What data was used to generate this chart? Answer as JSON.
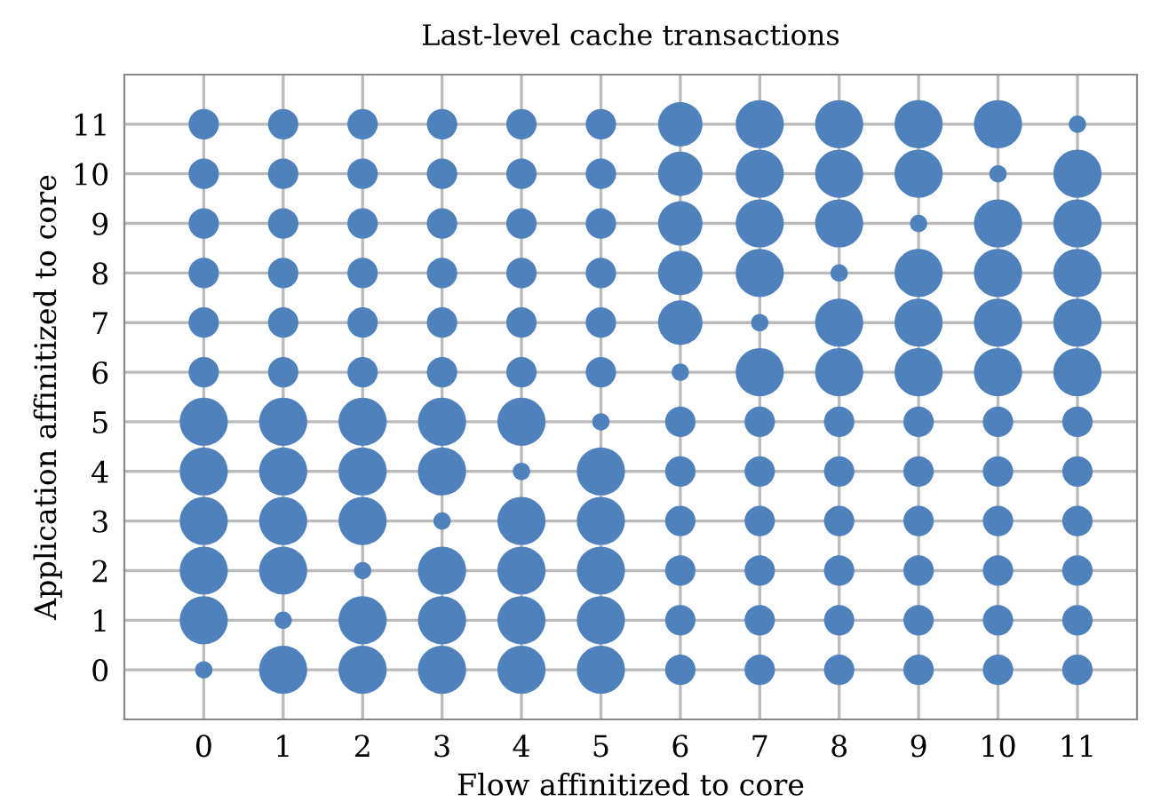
{
  "chart_data": {
    "type": "bubble",
    "title": "Last-level cache transactions",
    "xlabel": "Flow affinitized to core",
    "ylabel": "Application affinitized to core",
    "color": "#4f81bd",
    "xlim": [
      -1,
      11.75
    ],
    "ylim": [
      -1,
      12
    ],
    "xticks": [
      0,
      1,
      2,
      3,
      4,
      5,
      6,
      7,
      8,
      9,
      10,
      11
    ],
    "yticks": [
      0,
      1,
      2,
      3,
      4,
      5,
      6,
      7,
      8,
      9,
      10,
      11
    ],
    "grid": true,
    "x": [
      0,
      1,
      2,
      3,
      4,
      5,
      6,
      7,
      8,
      9,
      10,
      11,
      0,
      1,
      2,
      3,
      4,
      5,
      6,
      7,
      8,
      9,
      10,
      11,
      0,
      1,
      2,
      3,
      4,
      5,
      6,
      7,
      8,
      9,
      10,
      11,
      0,
      1,
      2,
      3,
      4,
      5,
      6,
      7,
      8,
      9,
      10,
      11,
      0,
      1,
      2,
      3,
      4,
      5,
      6,
      7,
      8,
      9,
      10,
      11,
      0,
      1,
      2,
      3,
      4,
      5,
      6,
      7,
      8,
      9,
      10,
      11,
      0,
      1,
      2,
      3,
      4,
      5,
      6,
      7,
      8,
      9,
      10,
      11,
      0,
      1,
      2,
      3,
      4,
      5,
      6,
      7,
      8,
      9,
      10,
      11,
      0,
      1,
      2,
      3,
      4,
      5,
      6,
      7,
      8,
      9,
      10,
      11,
      0,
      1,
      2,
      3,
      4,
      5,
      6,
      7,
      8,
      9,
      10,
      11,
      0,
      1,
      2,
      3,
      4,
      5,
      6,
      7,
      8,
      9,
      10,
      11,
      0,
      1,
      2,
      3,
      4,
      5,
      6,
      7,
      8,
      9,
      10,
      11
    ],
    "values": [
      0,
      0,
      0,
      0,
      0,
      0,
      0,
      0,
      0,
      0,
      0,
      0,
      1,
      1,
      1,
      1,
      1,
      1,
      1,
      1,
      1,
      1,
      1,
      1,
      2,
      2,
      2,
      2,
      2,
      2,
      2,
      2,
      2,
      2,
      2,
      2,
      3,
      3,
      3,
      3,
      3,
      3,
      3,
      3,
      3,
      3,
      3,
      3,
      4,
      4,
      4,
      4,
      4,
      4,
      4,
      4,
      4,
      4,
      4,
      4,
      5,
      5,
      5,
      5,
      5,
      5,
      5,
      5,
      5,
      5,
      5,
      5,
      6,
      6,
      6,
      6,
      6,
      6,
      6,
      6,
      6,
      6,
      6,
      6,
      7,
      7,
      7,
      7,
      7,
      7,
      7,
      7,
      7,
      7,
      7,
      7,
      8,
      8,
      8,
      8,
      8,
      8,
      8,
      8,
      8,
      8,
      8,
      8,
      9,
      9,
      9,
      9,
      9,
      9,
      9,
      9,
      9,
      9,
      9,
      9,
      10,
      10,
      10,
      10,
      10,
      10,
      10,
      10,
      10,
      10,
      10,
      10,
      11,
      11,
      11,
      11,
      11,
      11,
      11,
      11,
      11,
      11,
      11,
      11
    ],
    "sizes": [
      0.13,
      1,
      1,
      1,
      1,
      1,
      0.4,
      0.4,
      0.4,
      0.4,
      0.4,
      0.4,
      1,
      0.13,
      1,
      1,
      1,
      1,
      0.4,
      0.4,
      0.4,
      0.4,
      0.4,
      0.4,
      1,
      1,
      0.13,
      1,
      1,
      1,
      0.4,
      0.4,
      0.4,
      0.4,
      0.4,
      0.4,
      1,
      1,
      1,
      0.13,
      1,
      1,
      0.4,
      0.4,
      0.4,
      0.4,
      0.4,
      0.4,
      1,
      1,
      1,
      1,
      0.13,
      1,
      0.4,
      0.4,
      0.4,
      0.4,
      0.4,
      0.4,
      1,
      1,
      1,
      1,
      1,
      0.13,
      0.4,
      0.4,
      0.4,
      0.4,
      0.4,
      0.4,
      0.4,
      0.4,
      0.4,
      0.4,
      0.4,
      0.4,
      0.13,
      1,
      1,
      1,
      1,
      1,
      0.4,
      0.4,
      0.4,
      0.4,
      0.4,
      0.4,
      0.85,
      0.13,
      1,
      1,
      1,
      1,
      0.4,
      0.4,
      0.4,
      0.4,
      0.4,
      0.4,
      0.85,
      1,
      0.13,
      1,
      1,
      1,
      0.4,
      0.4,
      0.4,
      0.4,
      0.4,
      0.4,
      0.85,
      1,
      1,
      0.13,
      1,
      1,
      0.4,
      0.4,
      0.4,
      0.4,
      0.4,
      0.4,
      0.85,
      1,
      1,
      1,
      0.13,
      1,
      0.4,
      0.4,
      0.4,
      0.4,
      0.4,
      0.4,
      0.85,
      1,
      1,
      1,
      1,
      0.13
    ]
  }
}
